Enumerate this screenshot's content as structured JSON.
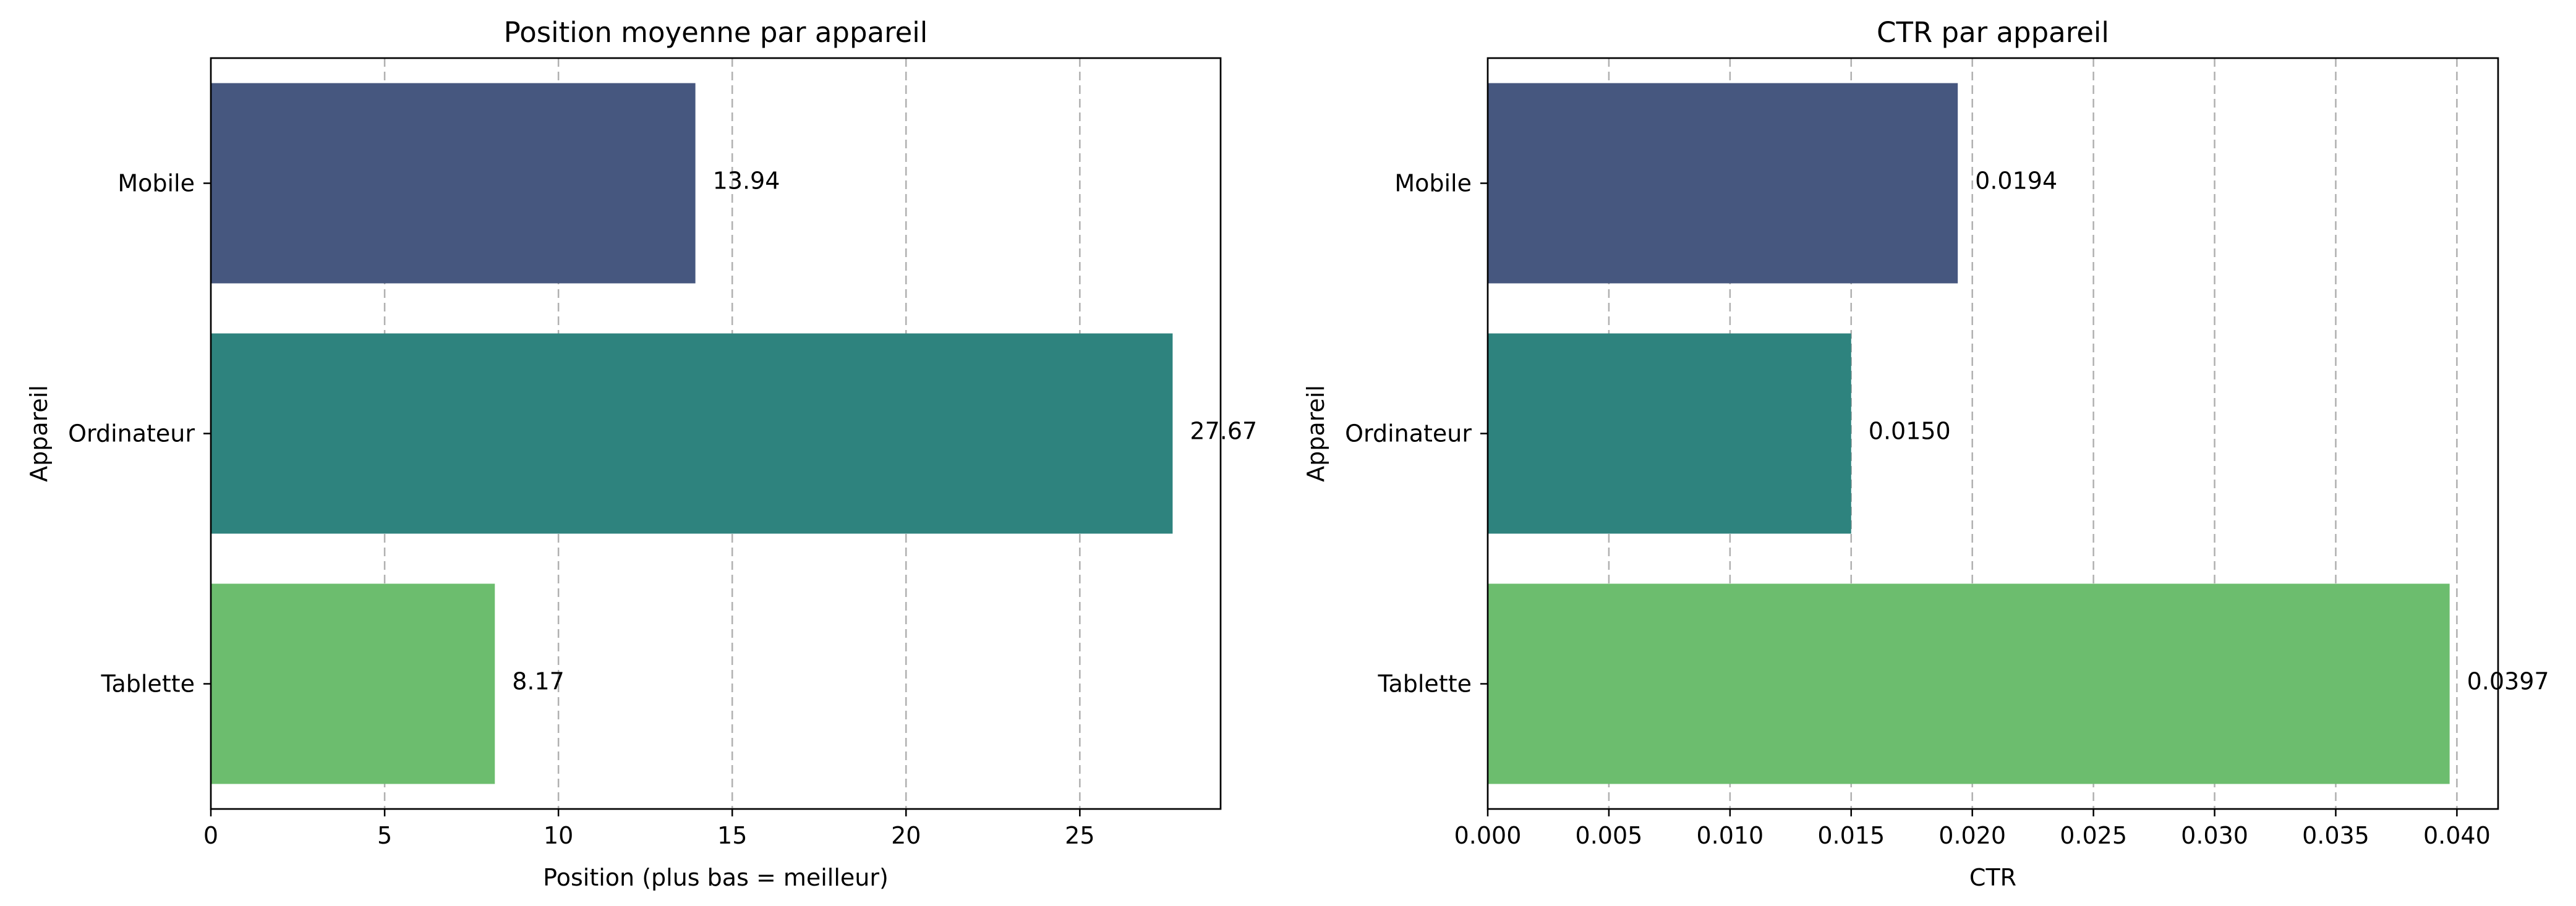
{
  "chart_data": [
    {
      "type": "bar",
      "orientation": "horizontal",
      "title": "Position moyenne par appareil",
      "xlabel": "Position (plus bas = meilleur)",
      "ylabel": "Appareil",
      "categories": [
        "Mobile",
        "Ordinateur",
        "Tablette"
      ],
      "values": [
        13.94,
        27.67,
        8.17
      ],
      "value_labels": [
        "13.94",
        "27.67",
        "8.17"
      ],
      "colors": [
        "#46577f",
        "#2e837e",
        "#6cbd6e"
      ],
      "xlim": [
        0,
        29.05
      ],
      "xticks": [
        0,
        5,
        10,
        15,
        20,
        25
      ],
      "xtick_labels": [
        "0",
        "5",
        "10",
        "15",
        "20",
        "25"
      ],
      "grid": "x-dashed"
    },
    {
      "type": "bar",
      "orientation": "horizontal",
      "title": "CTR par appareil",
      "xlabel": "CTR",
      "ylabel": "Appareil",
      "categories": [
        "Mobile",
        "Ordinateur",
        "Tablette"
      ],
      "values": [
        0.0194,
        0.015,
        0.0397
      ],
      "value_labels": [
        "0.0194",
        "0.0150",
        "0.0397"
      ],
      "colors": [
        "#46577f",
        "#2e837e",
        "#6cbd6e"
      ],
      "xlim": [
        0,
        0.0417
      ],
      "xticks": [
        0,
        0.005,
        0.01,
        0.015,
        0.02,
        0.025,
        0.03,
        0.035,
        0.04
      ],
      "xtick_labels": [
        "0.000",
        "0.005",
        "0.010",
        "0.015",
        "0.020",
        "0.025",
        "0.030",
        "0.035",
        "0.040"
      ],
      "grid": "x-dashed"
    }
  ]
}
